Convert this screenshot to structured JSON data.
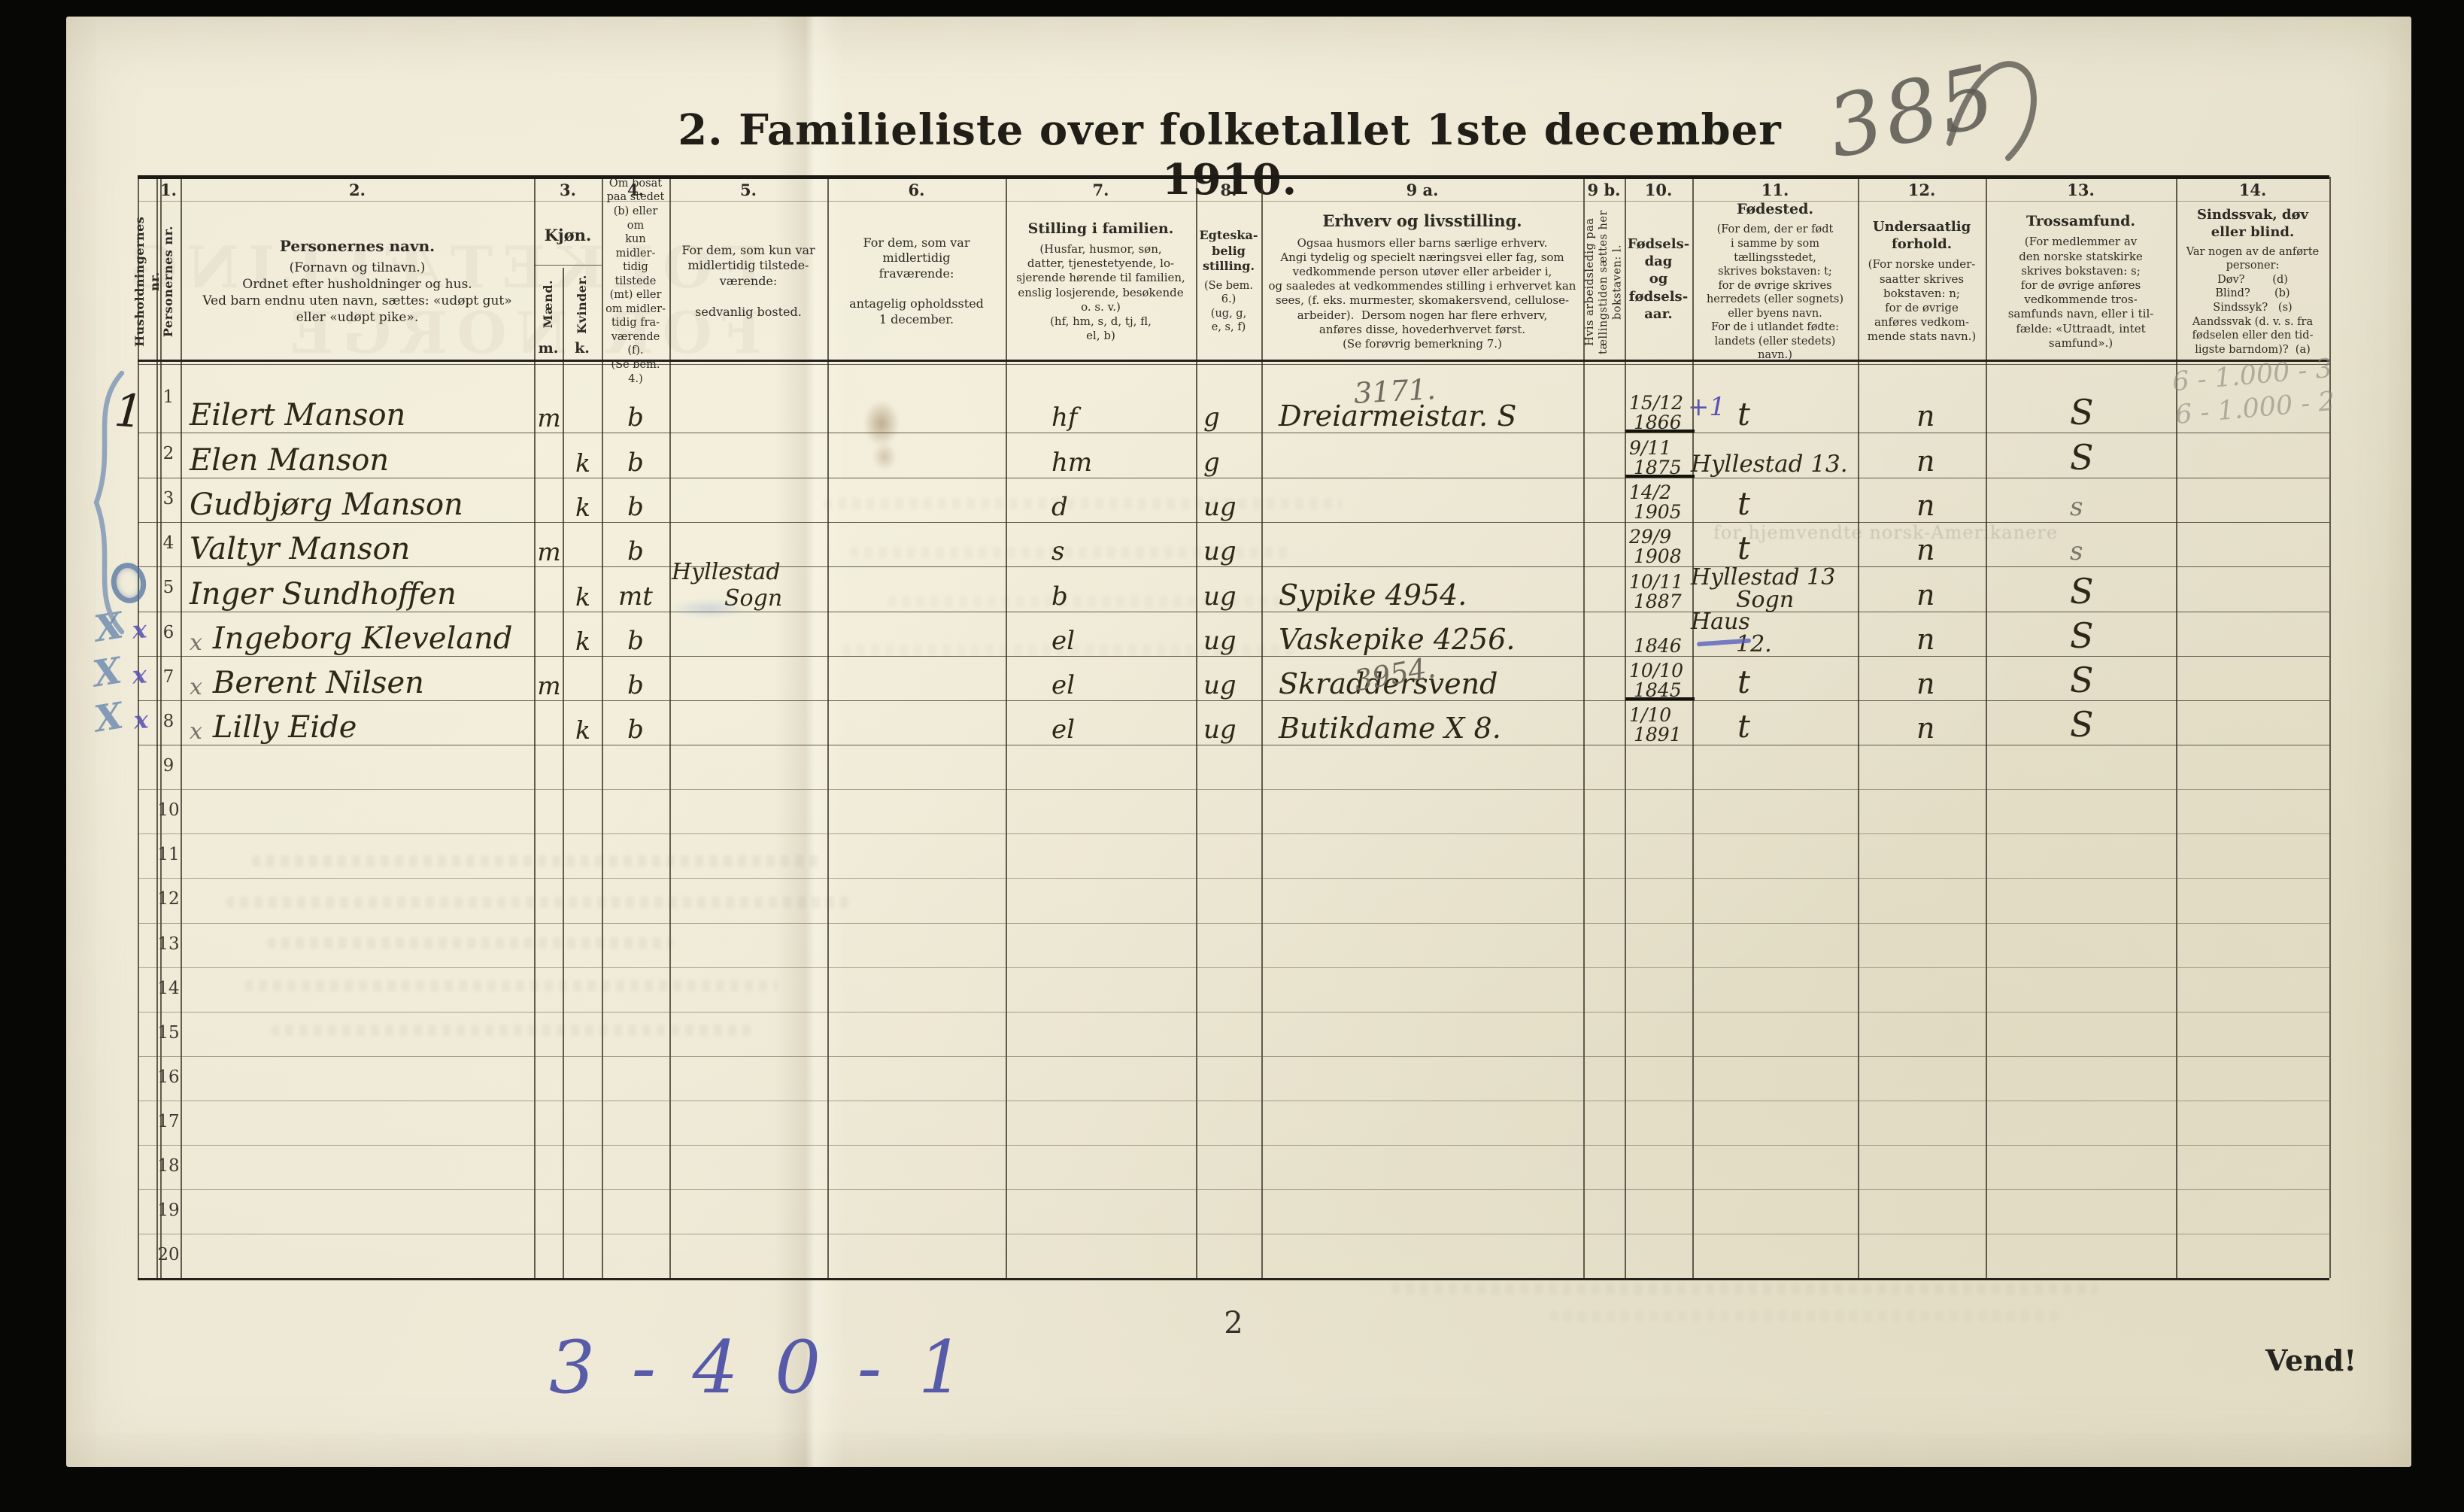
{
  "page": {
    "title": "2.  Familieliste over folketallet 1ste december 1910.",
    "sheet_number": "385",
    "page_number": "2",
    "turn_label": "Vend!",
    "tally_note": "3 - 4 0 - 1",
    "margin_note_1": "6 - 1.000 - 3",
    "margin_note_2": "6 - 1.000 - 2",
    "ghost_stamp": "FOLKETÆLLING FOR NORGE",
    "ghost_line": "for hjemvendte norsk-Amerikanere"
  },
  "table": {
    "columns": [
      {
        "id": "household",
        "rot": "Husholdningernes nr."
      },
      {
        "id": "person",
        "num": "1.",
        "rot": "Personernes nr."
      },
      {
        "id": "name",
        "num": "2.",
        "title": "Personernes navn.",
        "body": "(Fornavn og tilnavn.)\nOrdnet efter husholdninger og hus.\nVed barn endnu uten navn, sættes: «udøpt gut»\neller «udøpt pike»."
      },
      {
        "id": "kjon",
        "num": "3.",
        "title": "Kjøn.",
        "mand": "Mænd.",
        "kvinder": "Kvinder.",
        "m": "m.",
        "k": "k."
      },
      {
        "id": "bosat",
        "num": "4.",
        "body": "Om bosat\npaa stedet\n(b) eller om\nkun midler-\ntidig tilstede\n(mt) eller\nom midler-\ntidig fra-\nværende (f).\n(Se bem. 4.)"
      },
      {
        "id": "c5",
        "num": "5.",
        "body": "For dem, som kun var\nmidlertidig tilstede-\nværende:\n\nsedvanlig bosted."
      },
      {
        "id": "c6",
        "num": "6.",
        "body": "For dem, som var\nmidlertidig\nfraværende:\n\nantagelig opholdssted\n1 december."
      },
      {
        "id": "c7",
        "num": "7.",
        "title": "Stilling i familien.",
        "body": "(Husfar, husmor, søn,\ndatter, tjenestetyende, lo-\nsjerende hørende til familien,\nenslig losjerende, besøkende\no. s. v.)\n(hf, hm, s, d, tj, fl,\nel, b)"
      },
      {
        "id": "c8",
        "num": "8.",
        "title": "Egteska-\nbelig\nstilling.",
        "body": "(Se bem. 6.)\n(ug, g,\ne, s, f)"
      },
      {
        "id": "c9a",
        "num": "9 a.",
        "title": "Erhverv og livsstilling.",
        "body": "Ogsaa husmors eller barns særlige erhverv.\nAngi tydelig og specielt næringsvei eller fag, som\nvedkommende person utøver eller arbeider i,\nog saaledes at vedkommendes stilling i erhvervet kan\nsees, (f. eks. murmester, skomakersvend, cellulose-\narbeider).  Dersom nogen har flere erhverv,\nanføres disse, hovederhvervet først.\n(Se forøvrig bemerkning 7.)"
      },
      {
        "id": "c9b",
        "num": "9 b.",
        "rot": "Hvis arbeidsledig\npaa tællingstiden sættes\nher bokstaven: l."
      },
      {
        "id": "c10",
        "num": "10.",
        "title": "Fødsels-\ndag\nog\nfødsels-\naar."
      },
      {
        "id": "c11",
        "num": "11.",
        "title": "Fødested.",
        "body": "(For dem, der er født\ni samme by som\ntællingsstedet,\nskrives bokstaven: t;\nfor de øvrige skrives\nherredets (eller sognets)\neller byens navn.\nFor de i utlandet fødte:\nlandets (eller stedets)\nnavn.)"
      },
      {
        "id": "c12",
        "num": "12.",
        "title": "Undersaatlig\nforhold.",
        "body": "(For norske under-\nsaatter skrives\nbokstaven: n;\nfor de øvrige\nanføres vedkom-\nmende stats navn.)"
      },
      {
        "id": "c13",
        "num": "13.",
        "title": "Trossamfund.",
        "body": "(For medlemmer av\nden norske statskirke\nskrives bokstaven: s;\nfor de øvrige anføres\nvedkommende tros-\nsamfunds navn, eller i til-\nfælde: «Uttraadt, intet\nsamfund».)"
      },
      {
        "id": "c14",
        "num": "14.",
        "title": "Sindssvak, døv\neller blind.",
        "body": "Var nogen av de anførte\npersoner:\nDøv?        (d)\nBlind?       (b)\nSindssyk?   (s)\nAandssvak (d. v. s. fra\nfødselen eller den tid-\nligste barndom)?  (a)"
      }
    ],
    "rows": [
      {
        "nr": "1",
        "hh": "1",
        "name": "Eilert Manson",
        "km": "m",
        "bosat": "b",
        "stilling": "hf",
        "egt": "g",
        "erhverv": "Dreiarmeistar. S",
        "pencil": "3171.",
        "fd": "15/12",
        "fy": "1866",
        "fextra": "+1",
        "funder": true,
        "fsted1": "t",
        "und": "n",
        "tros": "S",
        "margin": "brace"
      },
      {
        "nr": "2",
        "name": "Elen Manson",
        "kk": "k",
        "bosat": "b",
        "stilling": "hm",
        "egt": "g",
        "fd": "9/11",
        "fy": "1875",
        "funder": true,
        "fsted1": "Hyllestad 13.",
        "und": "n",
        "tros": "S"
      },
      {
        "nr": "3",
        "name": "Gudbjørg Manson",
        "kk": "k",
        "bosat": "b",
        "stilling": "d",
        "egt": "ug",
        "fd": "14/2",
        "fy": "1905",
        "fsted1": "t",
        "und": "n",
        "tros": "s",
        "trosPencil": true
      },
      {
        "nr": "4",
        "name": "Valtyr Manson",
        "km": "m",
        "bosat": "b",
        "stilling": "s",
        "egt": "ug",
        "fd": "29/9",
        "fy": "1908",
        "fsted1": "t",
        "und": "n",
        "tros": "s",
        "trosPencil": true
      },
      {
        "nr": "5",
        "name": "Inger Sundhoffen",
        "kk": "k",
        "bosat": "mt",
        "c5a": "Hyllestad",
        "c5b": "Sogn",
        "stilling": "b",
        "egt": "ug",
        "erhverv": "Sypike 4954.",
        "fd": "10/11",
        "fy": "1887",
        "fsted1": "Hyllestad 13",
        "fsted2": "Sogn",
        "und": "n",
        "tros": "S",
        "margin": "circle"
      },
      {
        "nr": "6",
        "mark": "x",
        "name": "Ingeborg Kleveland",
        "kk": "k",
        "bosat": "b",
        "stilling": "el",
        "egt": "ug",
        "erhverv": "Vaskepike 4256.",
        "fy": "1846",
        "fsted1": "Haus",
        "fsted2": "12.",
        "fstedDash": true,
        "und": "n",
        "tros": "S",
        "margin": "xx"
      },
      {
        "nr": "7",
        "mark": "x",
        "name": "Berent Nilsen",
        "km": "m",
        "bosat": "b",
        "stilling": "el",
        "egt": "ug",
        "erhverv": "Skraddersvend",
        "pencil": "3954.",
        "fd": "10/10",
        "fy": "1845",
        "funder": true,
        "fsted1": "t",
        "und": "n",
        "tros": "S",
        "margin": "xx"
      },
      {
        "nr": "8",
        "mark": "x",
        "name": "Lilly Eide",
        "kk": "k",
        "bosat": "b",
        "stilling": "el",
        "egt": "ug",
        "erhverv": "Butikdame X 8.",
        "fd": "1/10",
        "fy": "1891",
        "fsted1": "t",
        "und": "n",
        "tros": "S",
        "margin": "xx"
      },
      {
        "nr": "9"
      },
      {
        "nr": "10"
      },
      {
        "nr": "11"
      },
      {
        "nr": "12"
      },
      {
        "nr": "13"
      },
      {
        "nr": "14"
      },
      {
        "nr": "15"
      },
      {
        "nr": "16"
      },
      {
        "nr": "17"
      },
      {
        "nr": "18"
      },
      {
        "nr": "19"
      },
      {
        "nr": "20"
      }
    ]
  }
}
